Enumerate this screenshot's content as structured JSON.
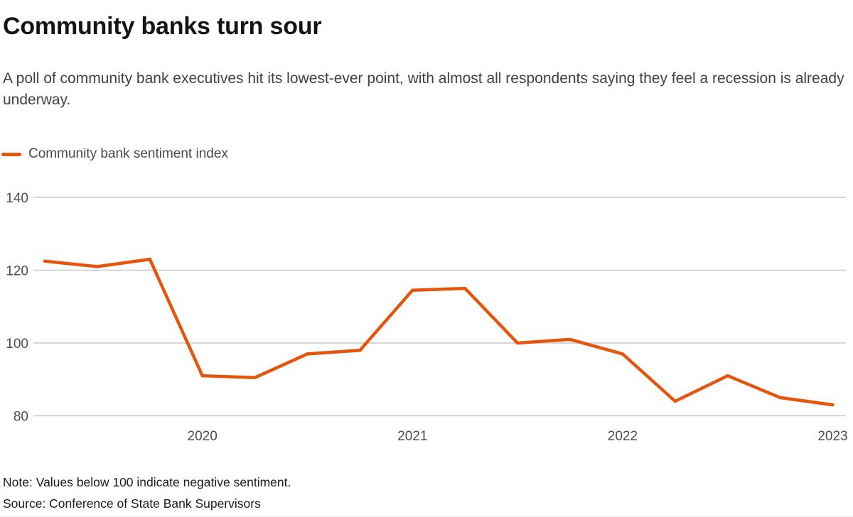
{
  "header": {
    "title": "Community banks turn sour",
    "subtitle": "A poll of community bank executives hit its lowest-ever point, with almost all respondents saying they feel a recession is already underway."
  },
  "legend": {
    "label": "Community bank sentiment index"
  },
  "chart_data": {
    "type": "line",
    "title": "Community banks turn sour",
    "series": [
      {
        "name": "Community bank sentiment index",
        "color": "#e6550d",
        "x": [
          "2019 Q2",
          "2019 Q3",
          "2019 Q4",
          "2020 Q1",
          "2020 Q2",
          "2020 Q3",
          "2020 Q4",
          "2021 Q1",
          "2021 Q2",
          "2021 Q3",
          "2021 Q4",
          "2022 Q1",
          "2022 Q2",
          "2022 Q3",
          "2022 Q4",
          "2023 Q1"
        ],
        "values": [
          122.5,
          121,
          123,
          91,
          90.5,
          97,
          98,
          114.5,
          115,
          100,
          101,
          97,
          84,
          91,
          85,
          83
        ]
      }
    ],
    "xlabel": "",
    "ylabel": "",
    "ylim": [
      80,
      140
    ],
    "yticks": [
      80,
      100,
      120,
      140
    ],
    "xticks": [
      {
        "label": "2020",
        "index": 3
      },
      {
        "label": "2021",
        "index": 7
      },
      {
        "label": "2022",
        "index": 11
      },
      {
        "label": "2023",
        "index": 15
      }
    ],
    "grid": "horizontal",
    "legend_position": "top-left"
  },
  "footer": {
    "note": "Note: Values below 100 indicate negative sentiment.",
    "source": "Source: Conference of State Bank Supervisors"
  },
  "colors": {
    "line": "#e6550d",
    "gridline": "#c9c9c9",
    "axis_text": "#4d4d4d",
    "title_text": "#141414",
    "subtitle_text": "#414141",
    "footer_text": "#1c1c1c",
    "background": "#ffffff"
  }
}
